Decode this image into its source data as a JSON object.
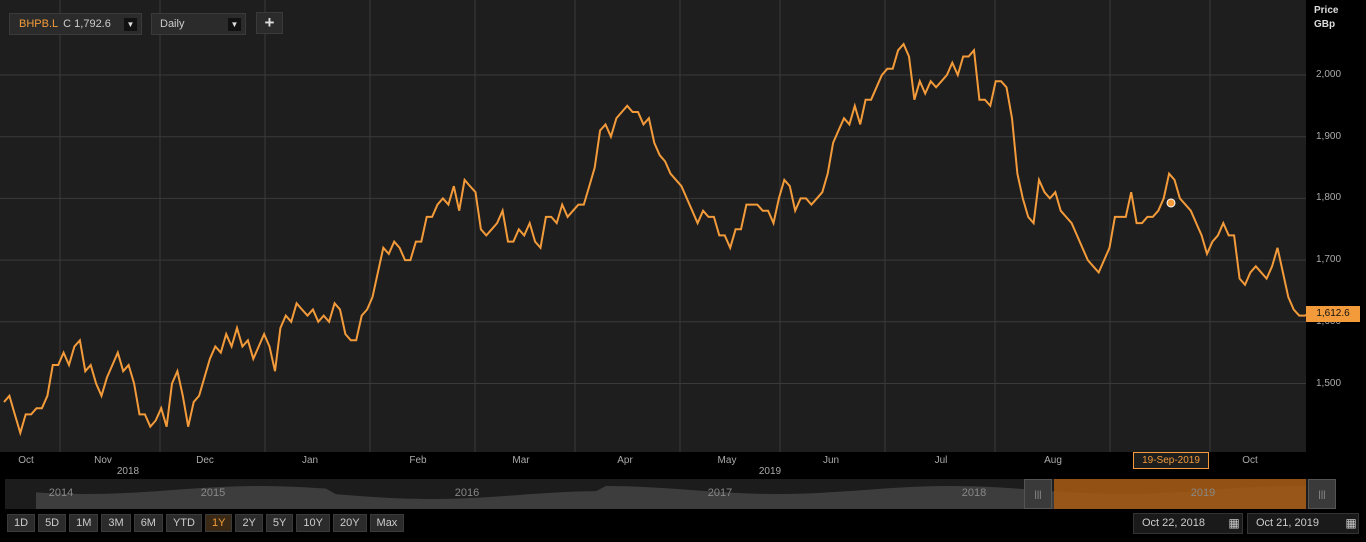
{
  "toolbar": {
    "symbol": "BHPB.L",
    "close_prefix": "C",
    "close_value": "1,792.6",
    "period": "Daily",
    "add_label": "+"
  },
  "axis": {
    "title_line1": "Price",
    "title_line2": "GBp",
    "last_value": "1,612.6",
    "y_ticks": [
      "2,000",
      "1,900",
      "1,800",
      "1,700",
      "1,600",
      "1,500"
    ],
    "x_ticks": [
      "Oct",
      "Nov",
      "Dec",
      "Jan",
      "Feb",
      "Mar",
      "Apr",
      "May",
      "Jun",
      "Jul",
      "Aug",
      "Oct"
    ],
    "year_labels": [
      "2018",
      "2019"
    ],
    "crosshair_date": "19-Sep-2019"
  },
  "navigator": {
    "years": [
      "2014",
      "2015",
      "2016",
      "2017",
      "2018",
      "2019"
    ],
    "handle_glyph": "|||"
  },
  "range_buttons": [
    "1D",
    "5D",
    "1M",
    "3M",
    "6M",
    "YTD",
    "1Y",
    "2Y",
    "5Y",
    "10Y",
    "20Y",
    "Max"
  ],
  "active_range": "1Y",
  "dates": {
    "start": "Oct 22, 2018",
    "end": "Oct 21, 2019",
    "calendar_glyph": "▦"
  },
  "colors": {
    "line": "#f39b3a",
    "background": "#1e1e1e",
    "grid": "#3a3a3a"
  },
  "chart_data": {
    "type": "line",
    "ylabel": "Price GBp",
    "ylim": [
      1420,
      2070
    ],
    "grid": true,
    "series": [
      {
        "values": [
          1470,
          1480,
          1450,
          1420,
          1450,
          1450,
          1460,
          1460,
          1480,
          1530,
          1530,
          1550,
          1530,
          1560,
          1570,
          1520,
          1530,
          1500,
          1480,
          1510,
          1530,
          1550,
          1520,
          1530,
          1500,
          1450,
          1450,
          1430,
          1440,
          1460,
          1430,
          1500,
          1520,
          1480,
          1430,
          1470,
          1480,
          1510,
          1540,
          1560,
          1550,
          1580,
          1560,
          1590,
          1560,
          1570,
          1540,
          1560,
          1580,
          1560,
          1520,
          1590,
          1610,
          1600,
          1630,
          1620,
          1610,
          1620,
          1600,
          1610,
          1600,
          1630,
          1620,
          1580,
          1570,
          1570,
          1610,
          1620,
          1640,
          1680,
          1720,
          1710,
          1730,
          1720,
          1700,
          1700,
          1730,
          1730,
          1770,
          1770,
          1790,
          1800,
          1790,
          1820,
          1780,
          1830,
          1820,
          1810,
          1750,
          1740,
          1750,
          1760,
          1780,
          1730,
          1730,
          1750,
          1740,
          1760,
          1730,
          1720,
          1770,
          1770,
          1760,
          1790,
          1770,
          1780,
          1790,
          1790,
          1820,
          1850,
          1910,
          1920,
          1900,
          1930,
          1940,
          1950,
          1940,
          1940,
          1920,
          1930,
          1890,
          1870,
          1860,
          1840,
          1830,
          1820,
          1800,
          1780,
          1760,
          1780,
          1770,
          1770,
          1740,
          1740,
          1720,
          1750,
          1750,
          1790,
          1790,
          1790,
          1780,
          1780,
          1760,
          1800,
          1830,
          1820,
          1780,
          1800,
          1800,
          1790,
          1800,
          1810,
          1840,
          1890,
          1910,
          1930,
          1920,
          1950,
          1920,
          1960,
          1960,
          1980,
          2000,
          2010,
          2010,
          2040,
          2050,
          2030,
          1960,
          1990,
          1970,
          1990,
          1980,
          1990,
          2000,
          2020,
          2000,
          2030,
          2030,
          2040,
          1960,
          1960,
          1950,
          1990,
          1990,
          1980,
          1930,
          1840,
          1800,
          1770,
          1760,
          1830,
          1810,
          1800,
          1810,
          1780,
          1770,
          1760,
          1740,
          1720,
          1700,
          1690,
          1680,
          1700,
          1720,
          1770,
          1770,
          1770,
          1810,
          1760,
          1760,
          1770,
          1770,
          1780,
          1800,
          1840,
          1830,
          1800,
          1790,
          1780,
          1760,
          1740,
          1710,
          1730,
          1740,
          1760,
          1740,
          1740,
          1670,
          1660,
          1680,
          1690,
          1680,
          1670,
          1690,
          1720,
          1680,
          1640,
          1620,
          1610,
          1610,
          1612.6
        ]
      }
    ],
    "x_start": "Oct 22, 2018",
    "x_end": "Oct 21, 2019",
    "highlight_point": {
      "date": "19-Sep-2019",
      "value": 1792.6
    }
  }
}
